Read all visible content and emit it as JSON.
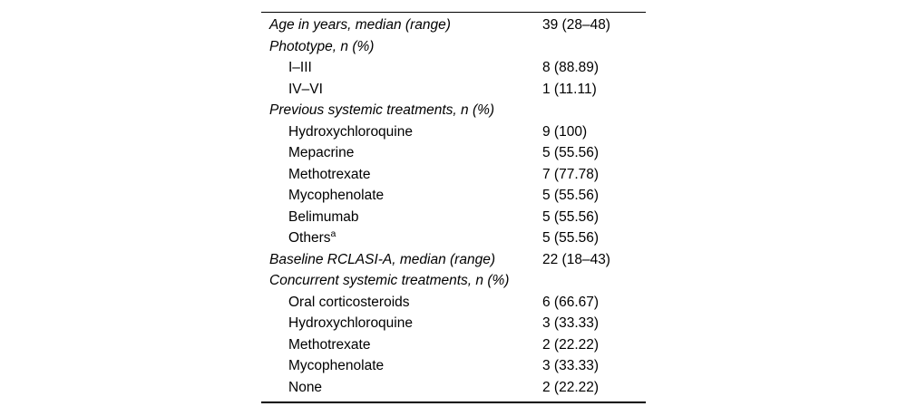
{
  "table": {
    "colors": {
      "text": "#000000",
      "background": "#ffffff",
      "rule": "#000000"
    },
    "rows": [
      {
        "type": "group-header",
        "label": "Age in years, median (range)",
        "value": "39 (28–48)"
      },
      {
        "type": "group-header",
        "label": "Phototype, n (%)",
        "value": ""
      },
      {
        "type": "sub-item",
        "label": "I–III",
        "value": "8 (88.89)"
      },
      {
        "type": "sub-item",
        "label": "IV–VI",
        "value": "1 (11.11)"
      },
      {
        "type": "group-header",
        "label": "Previous systemic treatments, n (%)",
        "value": ""
      },
      {
        "type": "sub-item",
        "label": "Hydroxychloroquine",
        "value": "9 (100)"
      },
      {
        "type": "sub-item",
        "label": "Mepacrine",
        "value": "5 (55.56)"
      },
      {
        "type": "sub-item",
        "label": "Methotrexate",
        "value": "7 (77.78)"
      },
      {
        "type": "sub-item",
        "label": "Mycophenolate",
        "value": "5 (55.56)"
      },
      {
        "type": "sub-item",
        "label": "Belimumab",
        "value": "5 (55.56)"
      },
      {
        "type": "sub-item",
        "label": "Others",
        "sup": "a",
        "value": "5 (55.56)"
      },
      {
        "type": "group-header",
        "label": "Baseline RCLASI-A, median (range)",
        "value": "22 (18–43)"
      },
      {
        "type": "group-header",
        "label": "Concurrent systemic treatments, n (%)",
        "value": ""
      },
      {
        "type": "sub-item",
        "label": "Oral corticosteroids",
        "value": "6 (66.67)"
      },
      {
        "type": "sub-item",
        "label": "Hydroxychloroquine",
        "value": "3 (33.33)"
      },
      {
        "type": "sub-item",
        "label": "Methotrexate",
        "value": "2 (22.22)"
      },
      {
        "type": "sub-item",
        "label": "Mycophenolate",
        "value": "3 (33.33)"
      },
      {
        "type": "sub-item",
        "label": "None",
        "value": "2 (22.22)"
      }
    ]
  }
}
